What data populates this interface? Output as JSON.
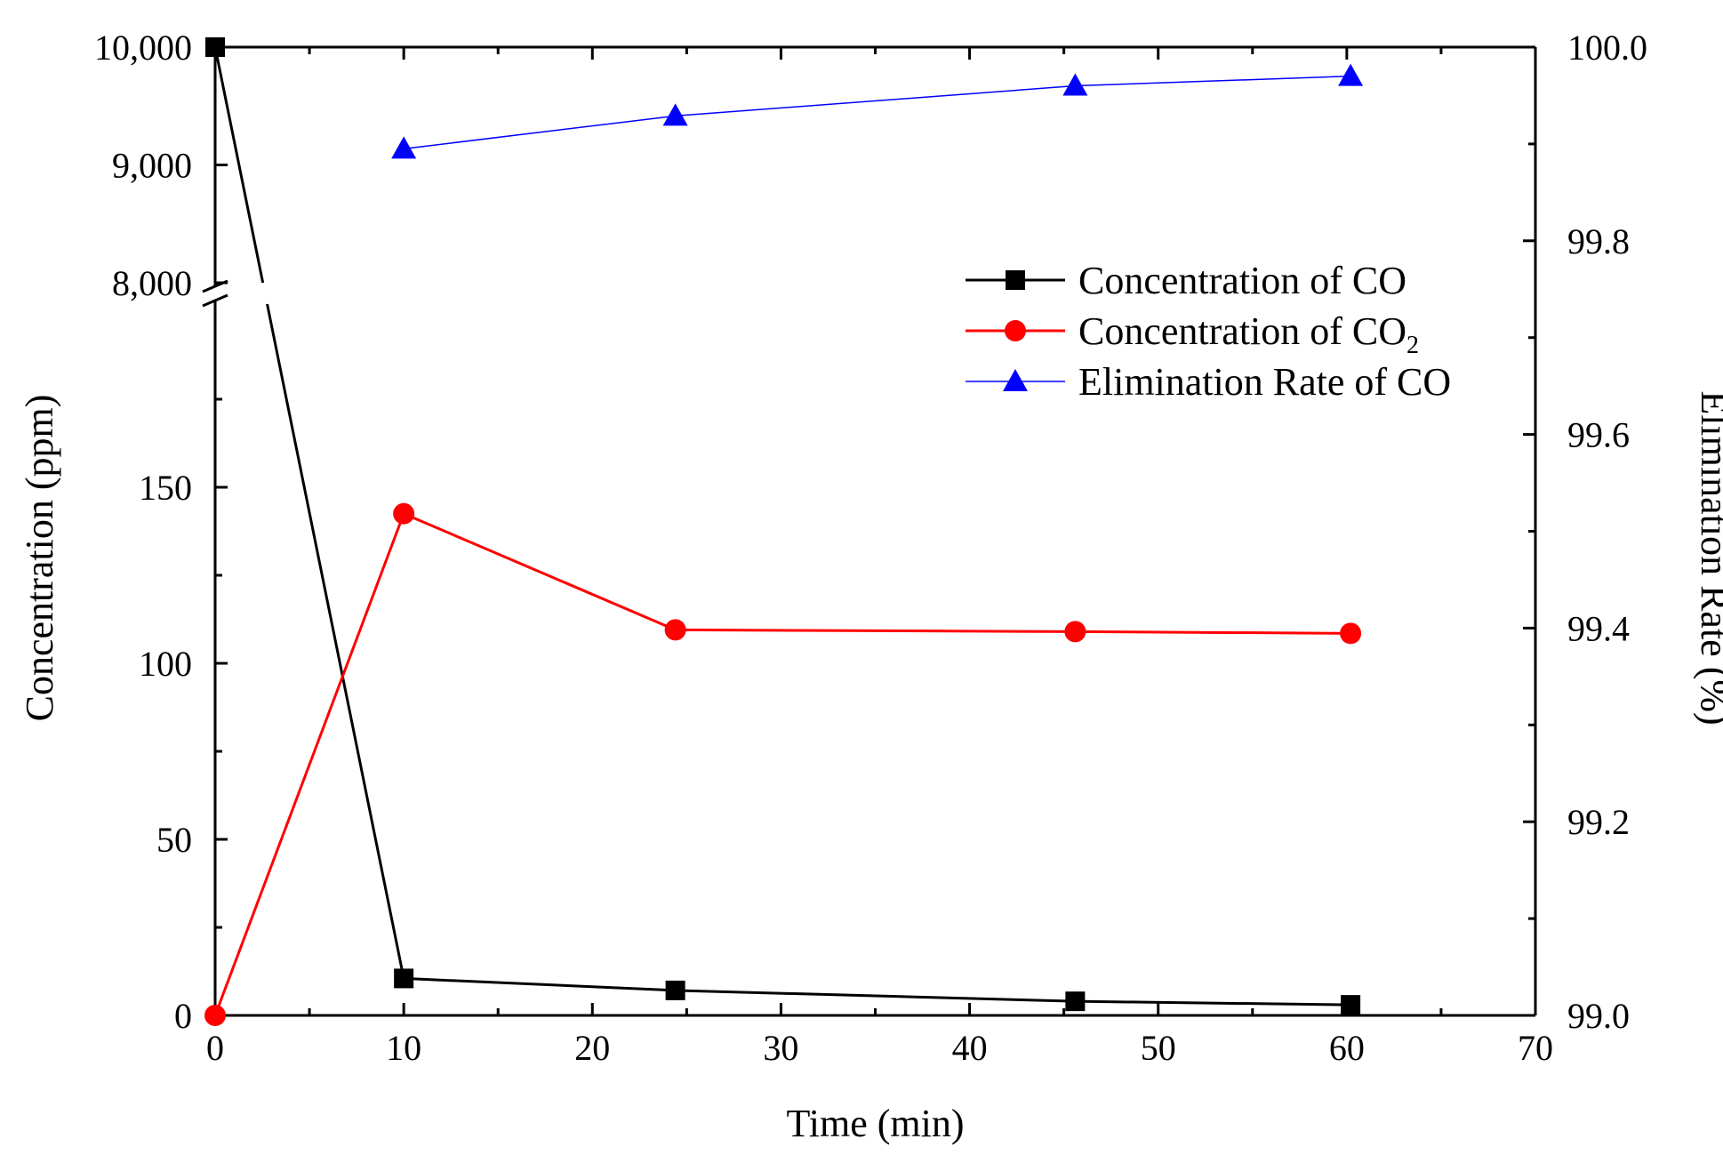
{
  "chart_data": {
    "type": "line",
    "xlabel": "Time (min)",
    "ylabel_left": "Concentration (ppm)",
    "ylabel_right": "Elimination Rate (%)",
    "x_ticks": [
      "0",
      "10",
      "20",
      "30",
      "40",
      "50",
      "60",
      "70"
    ],
    "xlim": [
      0,
      70
    ],
    "y_left_lower_ticks": [
      "0",
      "50",
      "100",
      "150"
    ],
    "y_left_upper_ticks": [
      "8,000",
      "9,000",
      "10,000"
    ],
    "y_left_lower_range": [
      0,
      200
    ],
    "y_left_upper_range": [
      8000,
      10000
    ],
    "y_right_ticks": [
      "99.0",
      "99.2",
      "99.4",
      "99.6",
      "99.8",
      "100.0"
    ],
    "y_right_range": [
      99.0,
      100.0
    ],
    "axis_break": "between 200 and 8,000 ppm on left axis",
    "grid": false,
    "legend_position": "upper-right",
    "series": [
      {
        "name": "Concentration of CO",
        "axis": "left",
        "color": "#000000",
        "marker": "square",
        "x": [
          0,
          10,
          24.4,
          45.6,
          60.2
        ],
        "y": [
          10000,
          10.5,
          7.1,
          4.0,
          3.0
        ]
      },
      {
        "name": "Concentration of CO",
        "name_subscript": "2",
        "axis": "left",
        "color": "#ff0000",
        "marker": "circle",
        "x": [
          0,
          10,
          24.4,
          45.6,
          60.2
        ],
        "y": [
          0,
          142.5,
          109.5,
          109,
          108.5
        ]
      },
      {
        "name": "Elimination Rate of CO",
        "axis": "right",
        "color": "#0000ff",
        "marker": "triangle",
        "x": [
          10,
          24.4,
          45.6,
          60.2
        ],
        "y": [
          99.895,
          99.929,
          99.96,
          99.97
        ]
      }
    ]
  }
}
